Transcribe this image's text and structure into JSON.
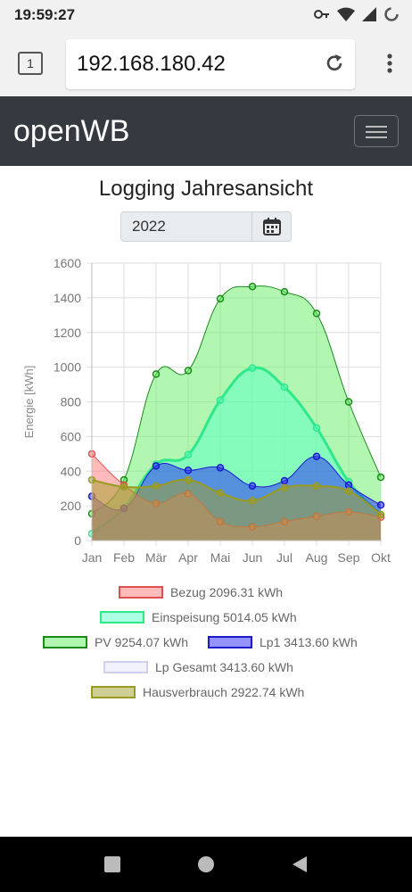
{
  "status_bar": {
    "time": "19:59:27"
  },
  "browser": {
    "tab_count": "1",
    "url": "192.168.180.42"
  },
  "navbar": {
    "brand": "openWB"
  },
  "page": {
    "title": "Logging Jahresansicht",
    "year": "2022"
  },
  "chart_data": {
    "type": "area",
    "categories": [
      "Jan",
      "Feb",
      "Mär",
      "Apr",
      "Mai",
      "Jun",
      "Jul",
      "Aug",
      "Sep",
      "Okt"
    ],
    "ylabel": "Energie [kWh]",
    "ylim": [
      0,
      1600
    ],
    "yticks": [
      0,
      200,
      400,
      600,
      800,
      1000,
      1200,
      1400,
      1600
    ],
    "grid": true,
    "legend_position": "bottom",
    "series": [
      {
        "name": "Bezug 2096.31 kWh",
        "color": "#e05050",
        "fill": "rgba(255,120,120,0.5)",
        "width": 1,
        "values": [
          500,
          320,
          215,
          270,
          110,
          80,
          110,
          140,
          165,
          135
        ]
      },
      {
        "name": "Einspeisung 5014.05 kWh",
        "color": "#2ee88a",
        "fill": "rgba(90,255,200,0.5)",
        "width": 3,
        "values": [
          40,
          190,
          440,
          495,
          810,
          995,
          885,
          650,
          340,
          150
        ]
      },
      {
        "name": "PV 9254.07 kWh",
        "color": "#1a8a1a",
        "fill": "rgba(100,240,100,0.5)",
        "width": 1,
        "values": [
          155,
          350,
          960,
          980,
          1395,
          1465,
          1435,
          1310,
          800,
          365
        ]
      },
      {
        "name": "Lp1 3413.60 kWh",
        "color": "#1a1acc",
        "fill": "rgba(40,40,255,0.5)",
        "width": 1,
        "values": [
          255,
          185,
          430,
          405,
          420,
          315,
          345,
          485,
          320,
          205
        ]
      },
      {
        "name": "Lp Gesamt 3413.60 kWh",
        "color": "#d0d0ee",
        "fill": "rgba(230,230,250,0.5)",
        "width": 1,
        "values": null
      },
      {
        "name": "Hausverbrauch 2922.74 kWh",
        "color": "#9a9a20",
        "fill": "rgba(160,160,40,0.5)",
        "width": 2,
        "values": [
          350,
          310,
          315,
          350,
          275,
          230,
          305,
          315,
          285,
          150
        ]
      }
    ]
  }
}
